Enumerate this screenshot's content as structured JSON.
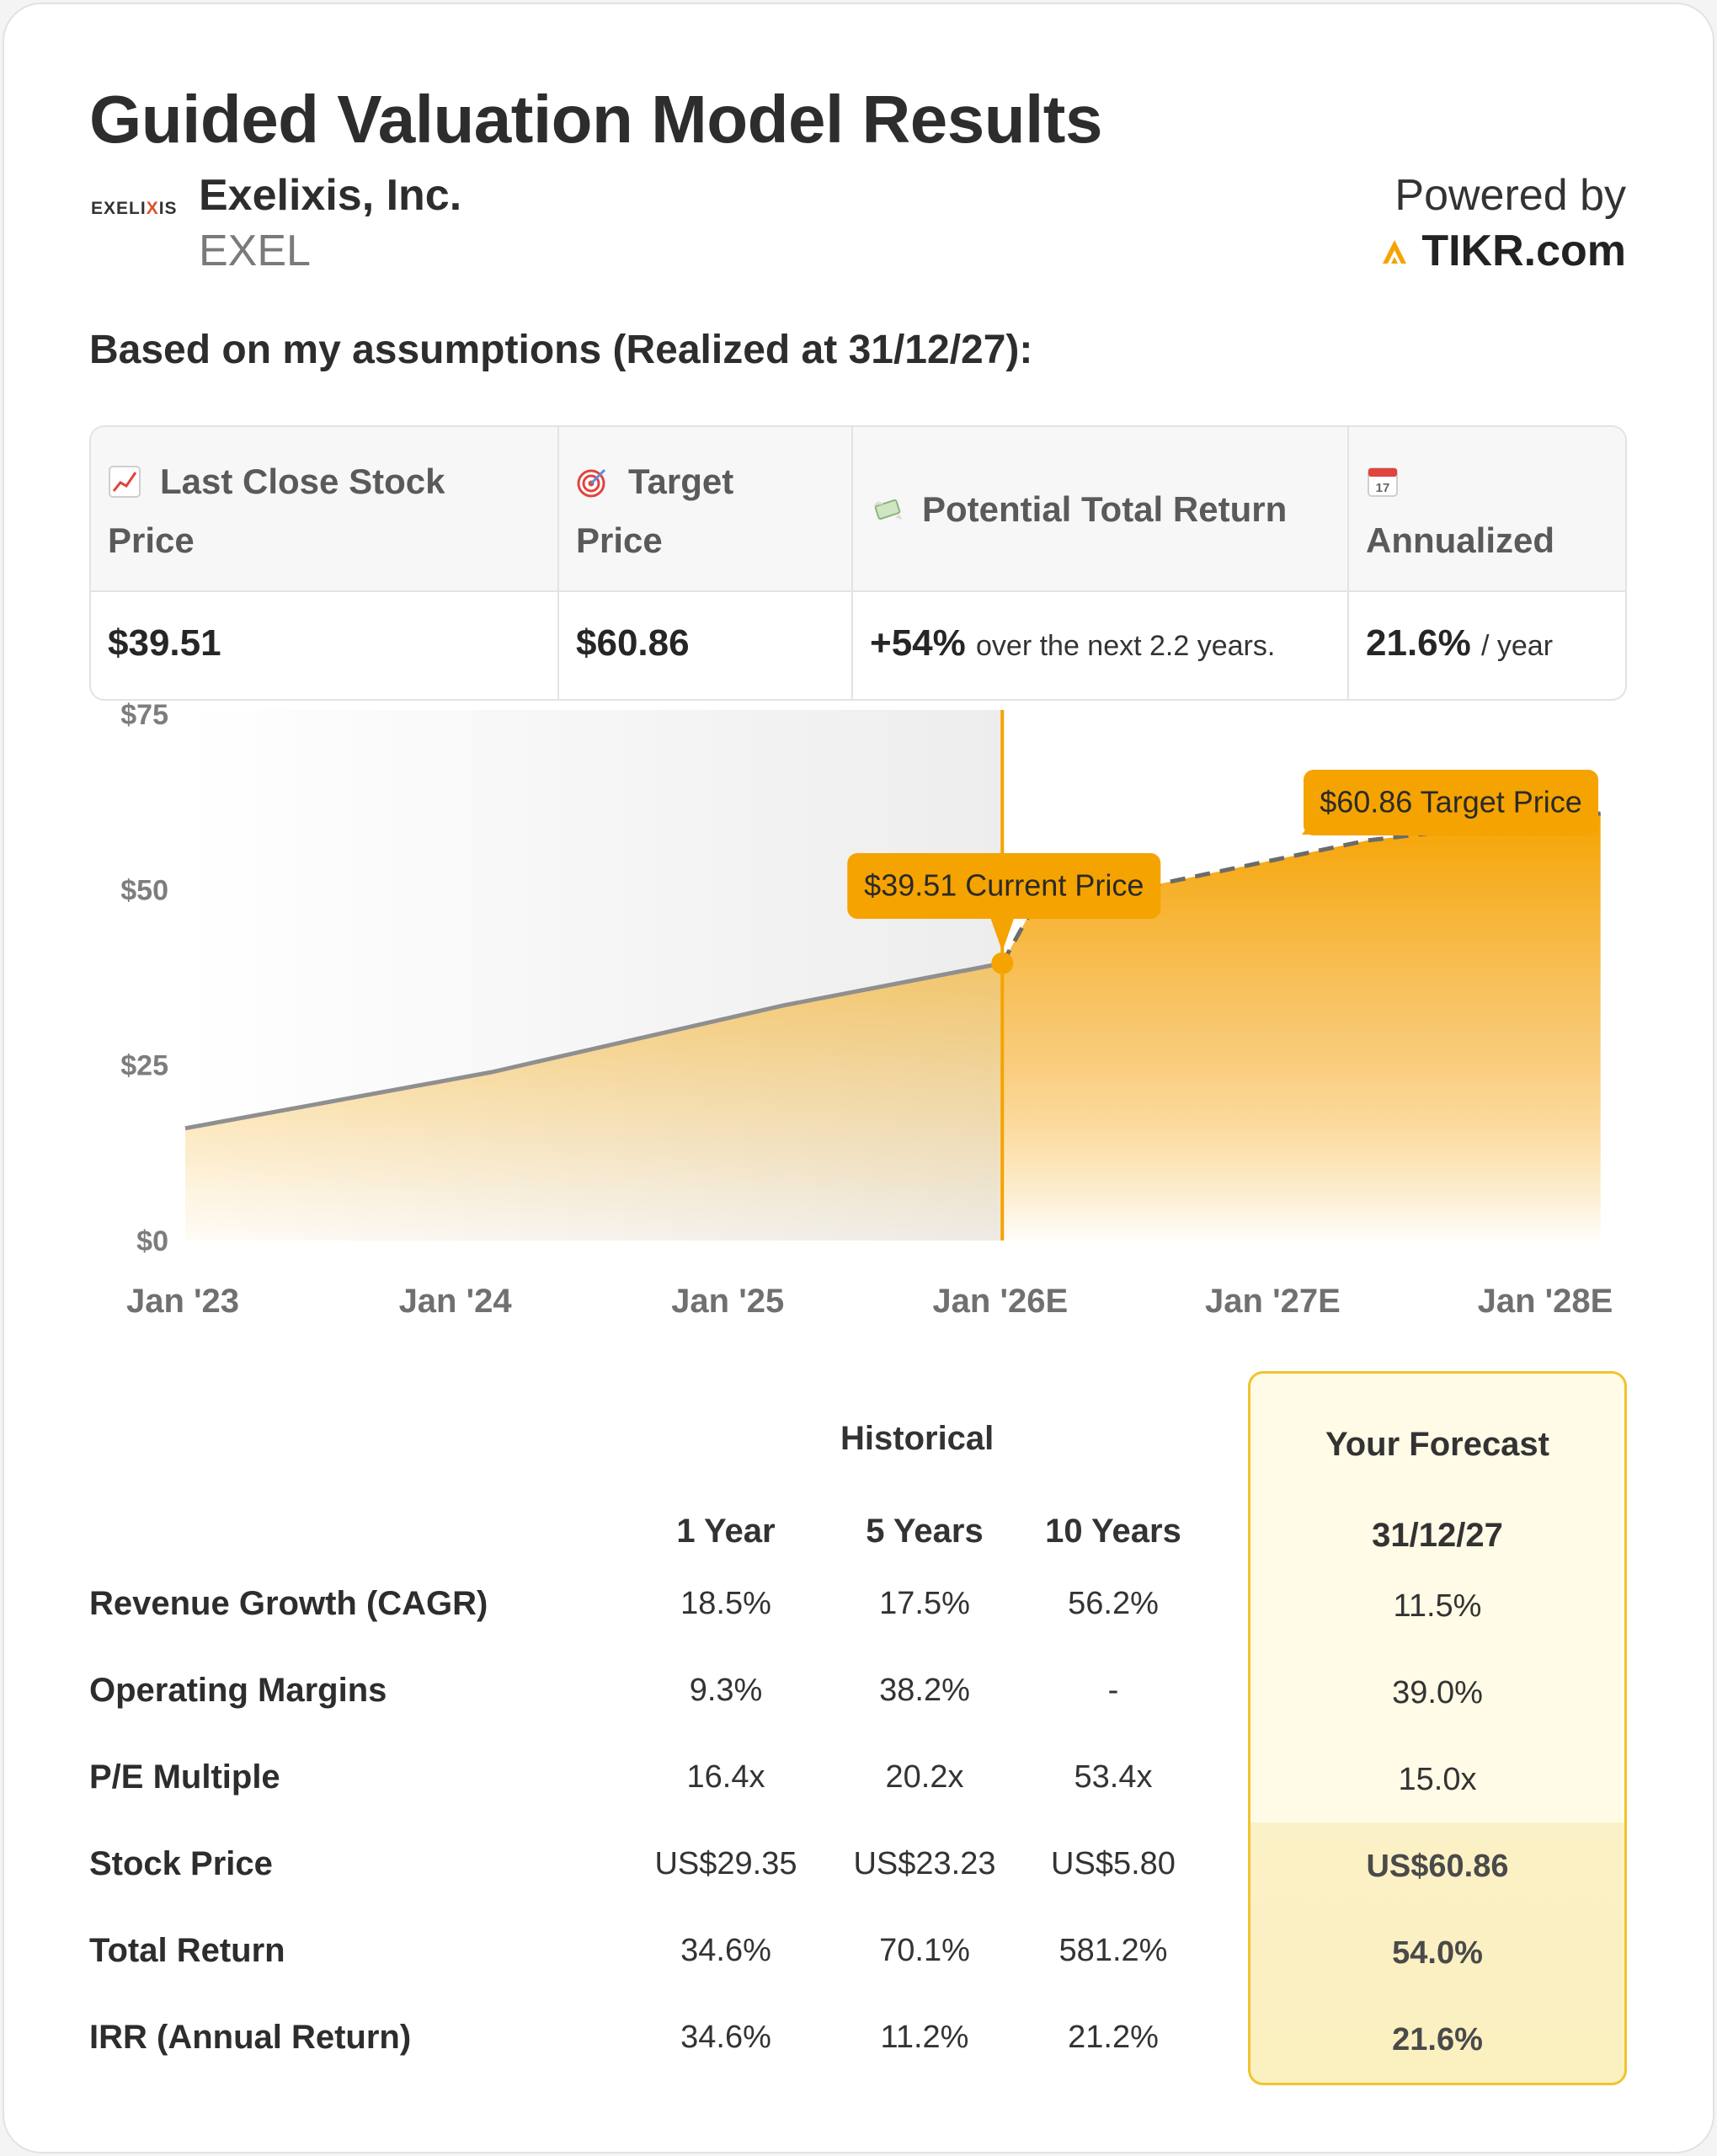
{
  "header": {
    "title": "Guided Valuation Model Results",
    "logo_text_a": "EXELI",
    "logo_text_x": "X",
    "logo_text_b": "IS",
    "company_name": "Exelixis, Inc.",
    "ticker": "EXEL",
    "powered_by": "Powered by",
    "brand": "TIKR.com"
  },
  "subtitle": "Based on my assumptions (Realized at 31/12/27):",
  "summary": {
    "last_close_label_1": "Last Close Stock",
    "last_close_label_2": "Price",
    "last_close_value": "$39.51",
    "target_label_1": "Target",
    "target_label_2": "Price",
    "target_value": "$60.86",
    "total_return_label": "Potential Total Return",
    "total_return_value": "+54%",
    "total_return_suffix": "over the next 2.2 years.",
    "annualized_label": "Annualized",
    "annualized_value": "21.6%",
    "annualized_suffix": "/ year",
    "icons": [
      "chart-increasing-icon",
      "target-icon",
      "money-with-wings-icon",
      "calendar-icon"
    ]
  },
  "chart_data": {
    "type": "area",
    "x_labels": [
      "Jan '23",
      "Jan '24",
      "Jan '25",
      "Jan '26E",
      "Jan '27E",
      "Jan '28E"
    ],
    "y_tick_labels": [
      "$0",
      "$25",
      "$50",
      "$75"
    ],
    "ylim": [
      0,
      75
    ],
    "historical": {
      "x": [
        2023.15,
        2024.2,
        2025.2,
        2025.95
      ],
      "y": [
        16,
        24,
        33.5,
        39.51
      ]
    },
    "forecast": {
      "x": [
        2025.95,
        2026.05,
        2027.2,
        2028.0
      ],
      "y": [
        39.51,
        47,
        57,
        60.86
      ]
    },
    "current_marker_x": 2025.95,
    "annotations": {
      "current": "$39.51 Current Price",
      "target": "$60.86 Target Price"
    },
    "colors": {
      "accent": "#f5a300",
      "historical_line": "#8f8f8f",
      "forecast_line": "#6b6b6b"
    }
  },
  "table": {
    "historical_header": "Historical",
    "forecast_header": "Your Forecast",
    "forecast_date": "31/12/27",
    "columns": [
      "1 Year",
      "5 Years",
      "10 Years"
    ],
    "rows": [
      {
        "label": "Revenue Growth (CAGR)",
        "values": [
          "18.5%",
          "17.5%",
          "56.2%"
        ],
        "forecast": "11.5%"
      },
      {
        "label": "Operating Margins",
        "values": [
          "9.3%",
          "38.2%",
          "-"
        ],
        "forecast": "39.0%"
      },
      {
        "label": "P/E Multiple",
        "values": [
          "16.4x",
          "20.2x",
          "53.4x"
        ],
        "forecast": "15.0x"
      },
      {
        "label": "Stock Price",
        "values": [
          "US$29.35",
          "US$23.23",
          "US$5.80"
        ],
        "forecast": "US$60.86"
      },
      {
        "label": "Total Return",
        "values": [
          "34.6%",
          "70.1%",
          "581.2%"
        ],
        "forecast": "54.0%"
      },
      {
        "label": "IRR (Annual Return)",
        "values": [
          "34.6%",
          "11.2%",
          "21.2%"
        ],
        "forecast": "21.6%"
      }
    ]
  }
}
